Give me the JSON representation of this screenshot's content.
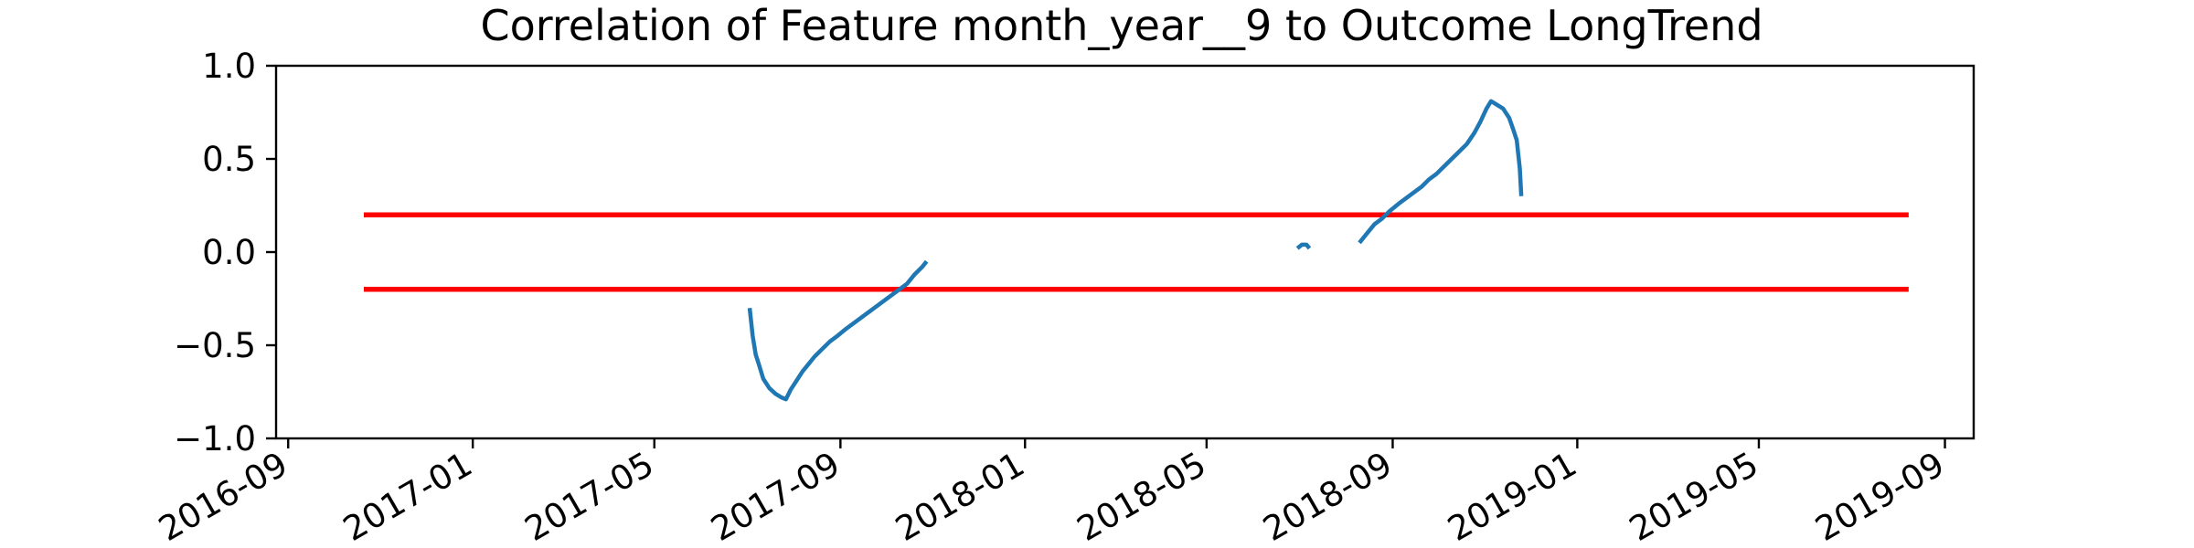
{
  "chart_data": {
    "type": "line",
    "title": "Correlation of Feature month_year__9 to Outcome LongTrend",
    "xlabel": "",
    "ylabel": "",
    "x_axis_kind": "date",
    "xlim": [
      "2016-08-24",
      "2019-09-20"
    ],
    "ylim": [
      -1.0,
      1.0
    ],
    "x_ticks": [
      "2016-09",
      "2017-01",
      "2017-05",
      "2017-09",
      "2018-01",
      "2018-05",
      "2018-09",
      "2019-01",
      "2019-05",
      "2019-09"
    ],
    "y_ticks": [
      "1.0",
      "0.5",
      "0.0",
      "−0.5",
      "−1.0"
    ],
    "grid": false,
    "legend": "none",
    "colors": {
      "series": "#1f77b4",
      "threshold": "#ff0000",
      "axes": "#000000"
    },
    "thresholds": [
      {
        "value": 0.2,
        "x_start": "2016-10-21",
        "x_end": "2019-08-08"
      },
      {
        "value": -0.2,
        "x_start": "2016-10-21",
        "x_end": "2019-08-08"
      }
    ],
    "series": [
      {
        "segments": [
          [
            [
              "2017-07-03",
              -0.3
            ],
            [
              "2017-07-05",
              -0.45
            ],
            [
              "2017-07-07",
              -0.55
            ],
            [
              "2017-07-09",
              -0.6
            ],
            [
              "2017-07-12",
              -0.68
            ],
            [
              "2017-07-16",
              -0.73
            ],
            [
              "2017-07-20",
              -0.76
            ],
            [
              "2017-07-24",
              -0.78
            ],
            [
              "2017-07-27",
              -0.79
            ],
            [
              "2017-07-30",
              -0.74
            ],
            [
              "2017-08-03",
              -0.69
            ],
            [
              "2017-08-07",
              -0.64
            ],
            [
              "2017-08-11",
              -0.6
            ],
            [
              "2017-08-15",
              -0.56
            ],
            [
              "2017-08-20",
              -0.52
            ],
            [
              "2017-08-25",
              -0.48
            ],
            [
              "2017-08-30",
              -0.45
            ],
            [
              "2017-09-05",
              -0.41
            ],
            [
              "2017-09-10",
              -0.38
            ],
            [
              "2017-09-15",
              -0.35
            ],
            [
              "2017-09-20",
              -0.32
            ],
            [
              "2017-09-25",
              -0.29
            ],
            [
              "2017-09-30",
              -0.26
            ],
            [
              "2017-10-05",
              -0.23
            ],
            [
              "2017-10-10",
              -0.2
            ],
            [
              "2017-10-15",
              -0.17
            ],
            [
              "2017-10-20",
              -0.12
            ],
            [
              "2017-10-25",
              -0.08
            ],
            [
              "2017-10-28",
              -0.05
            ]
          ],
          [
            [
              "2018-06-30",
              0.02
            ],
            [
              "2018-07-03",
              0.04
            ],
            [
              "2018-07-06",
              0.04
            ],
            [
              "2018-07-08",
              0.02
            ]
          ],
          [
            [
              "2018-08-10",
              0.05
            ],
            [
              "2018-08-15",
              0.1
            ],
            [
              "2018-08-20",
              0.15
            ],
            [
              "2018-08-25",
              0.18
            ],
            [
              "2018-08-30",
              0.22
            ],
            [
              "2018-09-05",
              0.26
            ],
            [
              "2018-09-10",
              0.29
            ],
            [
              "2018-09-15",
              0.32
            ],
            [
              "2018-09-20",
              0.35
            ],
            [
              "2018-09-25",
              0.39
            ],
            [
              "2018-09-30",
              0.42
            ],
            [
              "2018-10-05",
              0.46
            ],
            [
              "2018-10-10",
              0.5
            ],
            [
              "2018-10-15",
              0.54
            ],
            [
              "2018-10-20",
              0.58
            ],
            [
              "2018-10-25",
              0.64
            ],
            [
              "2018-10-29",
              0.7
            ],
            [
              "2018-11-02",
              0.77
            ],
            [
              "2018-11-05",
              0.81
            ],
            [
              "2018-11-09",
              0.79
            ],
            [
              "2018-11-13",
              0.77
            ],
            [
              "2018-11-17",
              0.72
            ],
            [
              "2018-11-20",
              0.65
            ],
            [
              "2018-11-22",
              0.6
            ],
            [
              "2018-11-24",
              0.45
            ],
            [
              "2018-11-25",
              0.3
            ]
          ]
        ]
      }
    ]
  }
}
